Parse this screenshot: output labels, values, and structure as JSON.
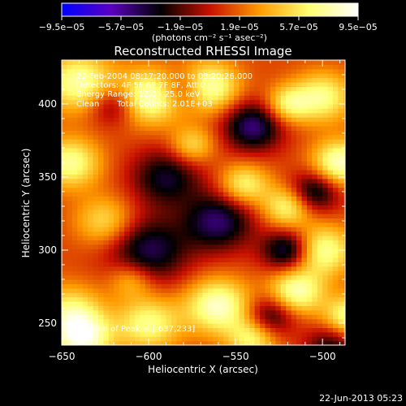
{
  "colorbar": {
    "ticks": [
      "−9.5e−05",
      "−5.7e−05",
      "−1.9e−05",
      "1.9e−05",
      "5.7e−05",
      "9.5e−05"
    ],
    "tick_values": [
      -9.5e-05,
      -5.7e-05,
      -1.9e-05,
      1.9e-05,
      5.7e-05,
      9.5e-05
    ],
    "range": [
      -9.5e-05,
      9.5e-05
    ],
    "unit_label": "(photons cm⁻² s⁻¹ asec⁻²)",
    "colors": [
      "#0000ff",
      "#5a00c0",
      "#000000",
      "#c81000",
      "#ff9a00",
      "#ffff70",
      "#ffffff"
    ]
  },
  "chart_data": {
    "type": "heatmap",
    "title": "Reconstructed RHESSI Image",
    "xlabel": "Heliocentric X (arcsec)",
    "ylabel": "Heliocentric Y (arcsec)",
    "xlim": [
      -650,
      -487
    ],
    "ylim": [
      235,
      430
    ],
    "xticks": [
      -650,
      -600,
      -550,
      -500
    ],
    "yticks": [
      250,
      300,
      350,
      400
    ],
    "xtick_labels": [
      "−650",
      "−600",
      "−550",
      "−500"
    ],
    "ytick_labels": [
      "250",
      "300",
      "350",
      "400"
    ],
    "grid": false,
    "annotations": {
      "time_range": "22-Feb-2004 08:17:20.000 to 08:20:26.000",
      "detectors": "Detectors: 4F 5F 6F 7F 8F, Att 0",
      "energy_range": "Energy Range: 12.0 - 25.0 keV",
      "algorithm": "Clean",
      "total_counts": "Total Counts: 2.01E+03",
      "peak": "Position of Peak = [-637,233]"
    },
    "peak_position": [
      -637,
      233
    ]
  },
  "footer": {
    "timestamp": "22-Jun-2013 05:23"
  }
}
